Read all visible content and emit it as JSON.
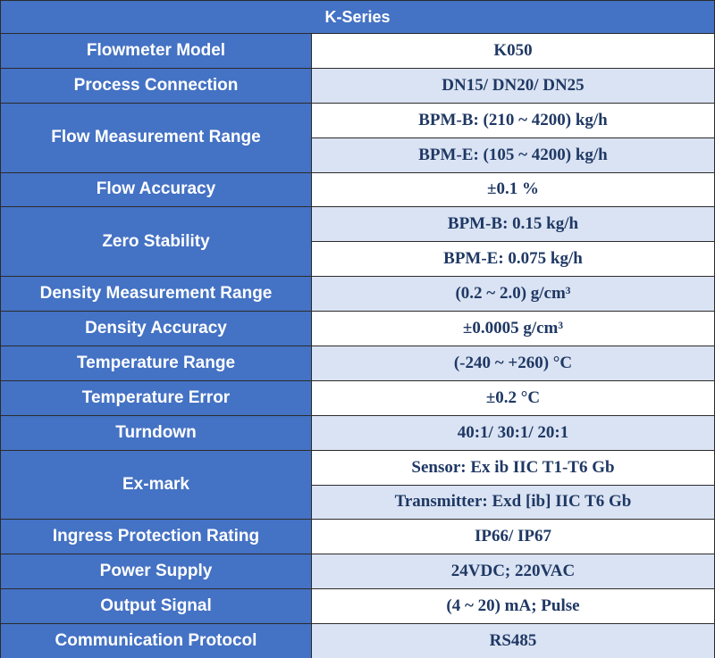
{
  "header": {
    "title": "K-Series"
  },
  "rows": [
    {
      "label": "Flowmeter Model",
      "values": [
        "K050"
      ]
    },
    {
      "label": "Process Connection",
      "values": [
        "DN15/ DN20/ DN25"
      ]
    },
    {
      "label": "Flow Measurement Range",
      "values": [
        "BPM-B: (210 ~ 4200) kg/h",
        "BPM-E: (105 ~ 4200) kg/h"
      ]
    },
    {
      "label": "Flow Accuracy",
      "values": [
        "±0.1 %"
      ]
    },
    {
      "label": "Zero Stability",
      "values": [
        "BPM-B: 0.15 kg/h",
        "BPM-E: 0.075 kg/h"
      ]
    },
    {
      "label": "Density Measurement Range",
      "values": [
        "(0.2 ~ 2.0) g/cm³"
      ]
    },
    {
      "label": "Density Accuracy",
      "values": [
        "±0.0005 g/cm³"
      ]
    },
    {
      "label": "Temperature Range",
      "values": [
        "(-240 ~ +260) °C"
      ]
    },
    {
      "label": "Temperature Error",
      "values": [
        "±0.2 °C"
      ]
    },
    {
      "label": "Turndown",
      "values": [
        "40:1/ 30:1/ 20:1"
      ]
    },
    {
      "label": "Ex-mark",
      "values": [
        "Sensor: Ex ib IIC T1-T6 Gb",
        "Transmitter: Exd [ib] IIC T6 Gb"
      ]
    },
    {
      "label": "Ingress Protection Rating",
      "values": [
        "IP66/ IP67"
      ]
    },
    {
      "label": "Power Supply",
      "values": [
        "24VDC; 220VAC"
      ]
    },
    {
      "label": "Output Signal",
      "values": [
        "(4 ~ 20) mA; Pulse"
      ]
    },
    {
      "label": "Communication Protocol",
      "values": [
        "RS485"
      ]
    }
  ]
}
